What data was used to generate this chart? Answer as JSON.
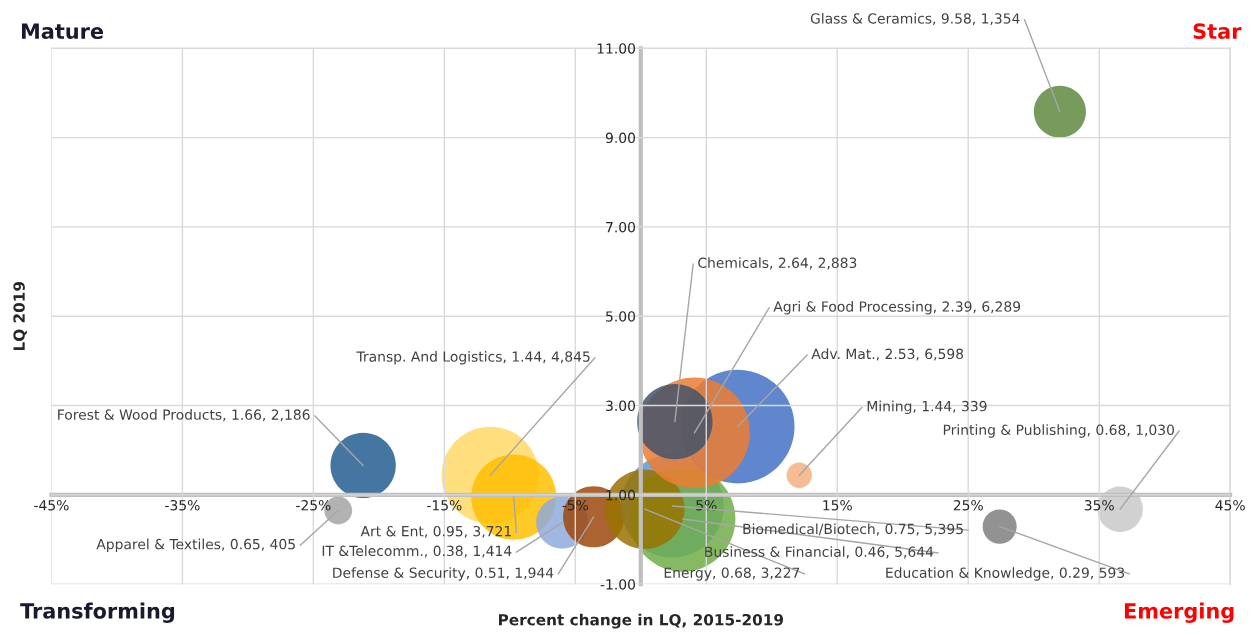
{
  "chart_data": {
    "type": "bubble",
    "xlabel": "Percent change in LQ, 2015-2019",
    "ylabel": "LQ 2019",
    "annotations": [
      "Mature",
      "Star",
      "Transforming",
      "Emerging",
      {
        "text": "Glass & Ceramics, 9.58, 1,354",
        "x": 32.0,
        "y": 9.58
      },
      {
        "text": "Chemicals, 2.64, 2,883",
        "x": 2.6,
        "y": 2.64
      },
      {
        "text": "Agri & Food Processing, 2.39, 6,289",
        "x": 4.1,
        "y": 2.39
      },
      {
        "text": "Adv. Mat., 2.53, 6,598",
        "x": 7.4,
        "y": 2.53
      },
      {
        "text": "Mining, 1.44, 339",
        "x": 12.1,
        "y": 1.44
      },
      {
        "text": "Printing & Publishing, 0.68, 1,030",
        "x": 36.6,
        "y": 0.68
      },
      {
        "text": "Education & Knowledge, 0.29, 593",
        "x": 27.4,
        "y": 0.29
      },
      {
        "text": "Energy, 0.68, 3,227",
        "x": 0.3,
        "y": 0.68
      },
      {
        "text": "Business & Financial, 0.46, 5,644",
        "x": 3.2,
        "y": 0.46
      },
      {
        "text": "Biomedical/Biotech, 0.75, 5,395",
        "x": 2.4,
        "y": 0.75
      },
      {
        "text": "Defense & Security, 0.51, 1,944",
        "x": -3.6,
        "y": 0.51
      },
      {
        "text": "IT &Telecomm., 0.38, 1,414",
        "x": -6.0,
        "y": 0.38
      },
      {
        "text": "Art & Ent, 0.95, 3,721",
        "x": -9.7,
        "y": 0.95
      },
      {
        "text": "Transp. And Logistics, 1.44, 4,845",
        "x": -11.5,
        "y": 1.44
      },
      {
        "text": "Forest & Wood Products, 1.66, 2,186",
        "x": -21.2,
        "y": 1.66
      },
      {
        "text": "Apparel & Textiles, 0.65, 405",
        "x": -23.1,
        "y": 0.65
      }
    ],
    "x": [
      32.0,
      2.6,
      4.1,
      7.4,
      12.1,
      36.6,
      27.4,
      0.3,
      3.2,
      2.4,
      -3.6,
      -6.0,
      -9.7,
      -11.5,
      -21.2,
      -23.1
    ],
    "values": [
      9.58,
      2.64,
      2.39,
      2.53,
      1.44,
      0.68,
      0.29,
      0.68,
      0.46,
      0.75,
      0.51,
      0.38,
      0.95,
      1.44,
      1.66,
      0.65
    ],
    "sizes": [
      0.21,
      0.44,
      0.95,
      1,
      0.05,
      0.16,
      0.09,
      0.49,
      0.86,
      0.82,
      0.29,
      0.21,
      0.56,
      0.73,
      0.33,
      0.06
    ],
    "colors": [
      "#5f8a3f",
      "#44546a",
      "#ed7d31",
      "#4472c4",
      "#f4b183",
      "#c9c9c9",
      "#7f7f7f",
      "#997300",
      "#70ad47",
      "#5b9bd5",
      "#9e480e",
      "#8faadc",
      "#ffc000",
      "#ffd966",
      "#255e91",
      "#a5a5a5"
    ],
    "xlim": [
      -45,
      45
    ],
    "xticks": [
      {
        "value": -45,
        "label": "-45%"
      },
      {
        "value": -35,
        "label": "-35%"
      },
      {
        "value": -25,
        "label": "-25%"
      },
      {
        "value": -15,
        "label": "-15%"
      },
      {
        "value": -5,
        "label": "-5%"
      },
      {
        "value": 5,
        "label": "5%"
      },
      {
        "value": 15,
        "label": "15%"
      },
      {
        "value": 25,
        "label": "25%"
      },
      {
        "value": 35,
        "label": "35%"
      },
      {
        "value": 45,
        "label": "45%"
      }
    ],
    "ylim": [
      -1,
      11
    ],
    "yticks": [
      {
        "value": -1,
        "label": "-1.00"
      },
      {
        "value": 1,
        "label": "1.00"
      },
      {
        "value": 3,
        "label": "3.00"
      },
      {
        "value": 5,
        "label": "5.00"
      },
      {
        "value": 7,
        "label": "7.00"
      },
      {
        "value": 9,
        "label": "9.00"
      },
      {
        "value": 11,
        "label": "11.00"
      }
    ],
    "grid": true
  }
}
